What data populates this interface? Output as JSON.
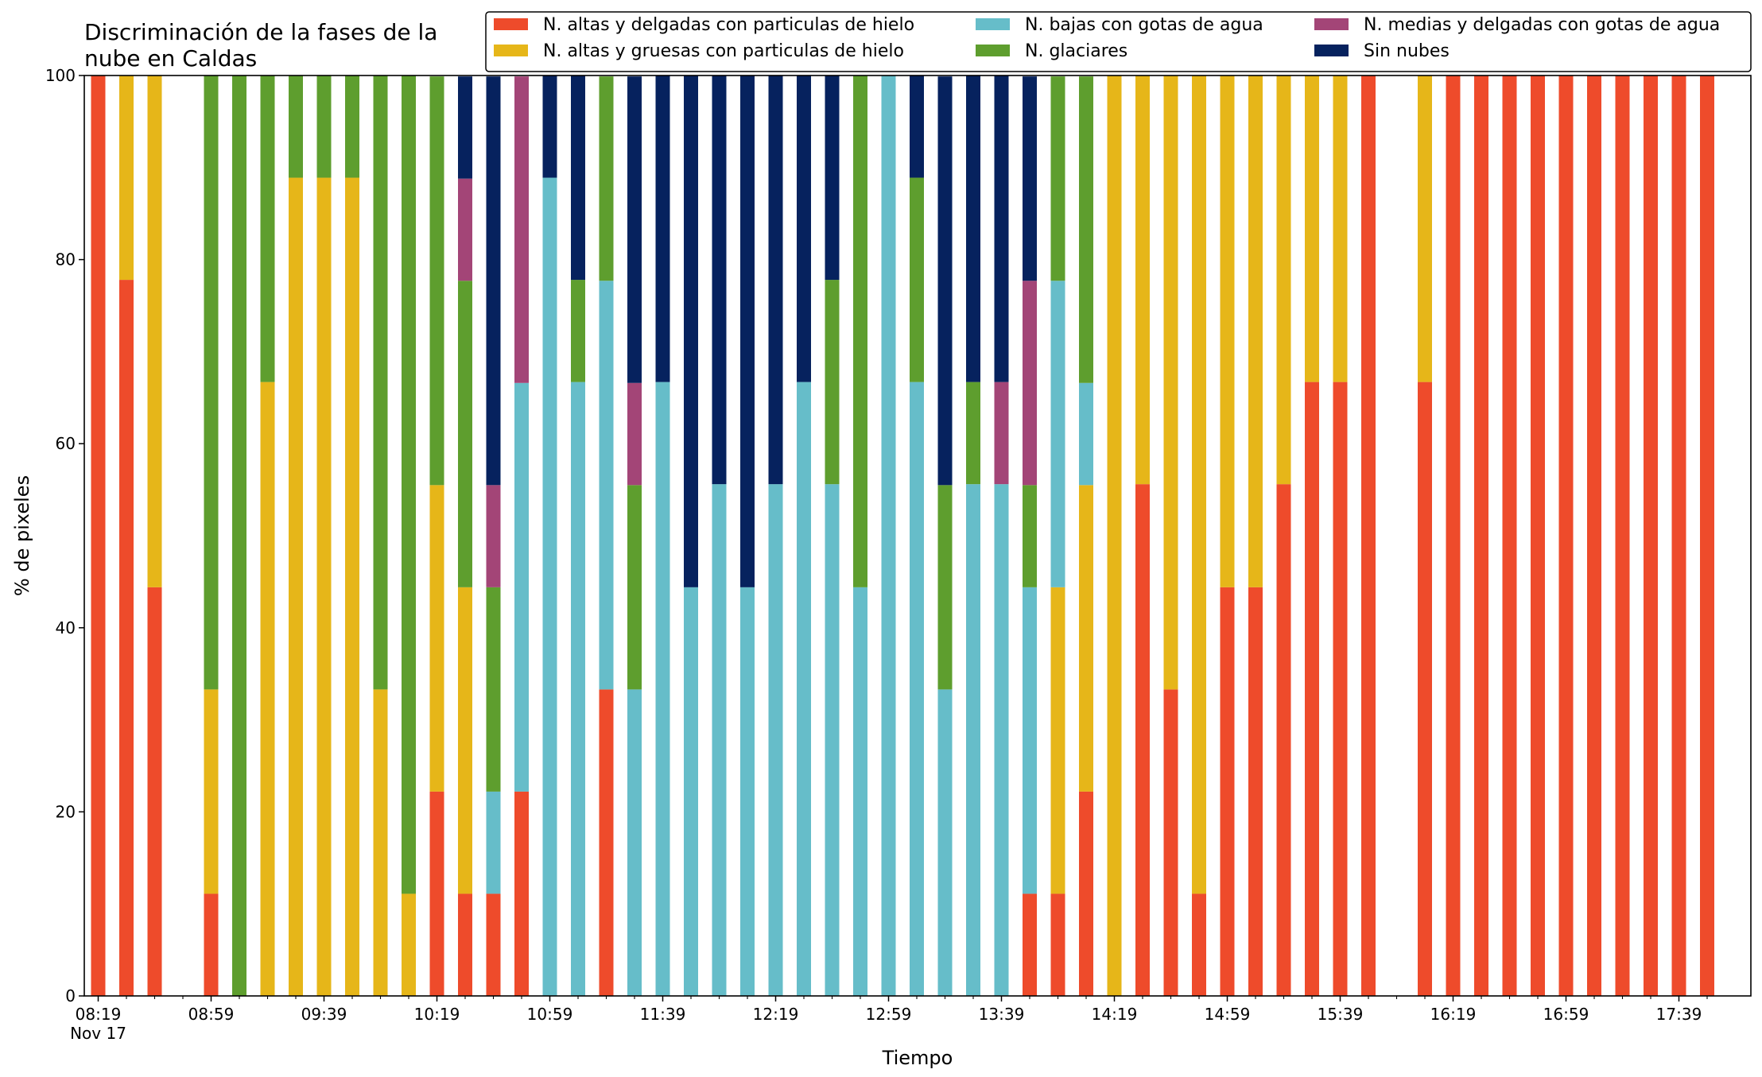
{
  "chart_data": {
    "type": "bar",
    "stacked": true,
    "title_lines": [
      "Discriminación de la fases de la",
      "nube en Caldas"
    ],
    "xlabel": "Tiempo",
    "ylabel": "% de pixeles",
    "ylim": [
      0,
      100
    ],
    "y_ticks": [
      0,
      20,
      40,
      60,
      80,
      100
    ],
    "legend_position": "top-right",
    "x_tick_labels": [
      {
        "time": "08:19",
        "sub": "Nov 17"
      },
      {
        "time": "08:59"
      },
      {
        "time": "09:39"
      },
      {
        "time": "10:19"
      },
      {
        "time": "10:59"
      },
      {
        "time": "11:39"
      },
      {
        "time": "12:19"
      },
      {
        "time": "12:59"
      },
      {
        "time": "13:39"
      },
      {
        "time": "14:19"
      },
      {
        "time": "14:59"
      },
      {
        "time": "15:39"
      },
      {
        "time": "16:19"
      },
      {
        "time": "16:59"
      },
      {
        "time": "17:39"
      }
    ],
    "categories": [
      "08:19",
      "08:29",
      "08:39",
      "08:49",
      "08:59",
      "09:09",
      "09:19",
      "09:29",
      "09:39",
      "09:49",
      "09:59",
      "10:09",
      "10:19",
      "10:29",
      "10:39",
      "10:49",
      "10:59",
      "11:09",
      "11:19",
      "11:29",
      "11:39",
      "11:49",
      "11:59",
      "12:09",
      "12:19",
      "12:29",
      "12:39",
      "12:49",
      "12:59",
      "13:09",
      "13:19",
      "13:29",
      "13:39",
      "13:49",
      "13:59",
      "14:09",
      "14:19",
      "14:29",
      "14:39",
      "14:49",
      "14:59",
      "15:09",
      "15:19",
      "15:29",
      "15:39",
      "15:49",
      "15:59",
      "16:09",
      "16:19",
      "16:29",
      "16:39",
      "16:49",
      "16:59",
      "17:09",
      "17:19",
      "17:29",
      "17:39",
      "17:49"
    ],
    "series": [
      {
        "name": "N. altas y delgadas con particulas de hielo",
        "color": "#EE4B2B",
        "values": [
          100,
          77.8,
          44.4,
          0,
          11.1,
          0,
          0,
          0,
          0,
          0,
          0,
          0,
          22.2,
          11.1,
          11.1,
          22.2,
          0,
          0,
          33.3,
          0,
          0,
          0,
          0,
          0,
          0,
          0,
          0,
          0,
          0,
          0,
          0,
          0,
          0,
          11.1,
          11.1,
          22.2,
          0,
          55.6,
          33.3,
          11.1,
          44.4,
          44.4,
          55.6,
          66.7,
          66.7,
          100,
          0,
          66.7,
          100,
          100,
          100,
          100,
          100,
          100,
          100,
          100,
          100,
          100
        ]
      },
      {
        "name": "N. altas y gruesas con particulas de hielo",
        "color": "#E6B619",
        "values": [
          0,
          22.2,
          55.6,
          0,
          22.2,
          0,
          66.7,
          88.9,
          88.9,
          88.9,
          33.3,
          11.1,
          33.3,
          33.3,
          0,
          0,
          0,
          0,
          0,
          0,
          0,
          0,
          0,
          0,
          0,
          0,
          0,
          0,
          0,
          0,
          0,
          0,
          0,
          0,
          33.3,
          33.3,
          100,
          44.4,
          66.7,
          88.9,
          55.6,
          55.6,
          44.4,
          33.3,
          33.3,
          0,
          0,
          33.3,
          0,
          0,
          0,
          0,
          0,
          0,
          0,
          0,
          0,
          0
        ]
      },
      {
        "name": "N. bajas con gotas de agua",
        "color": "#66BDC9",
        "values": [
          0,
          0,
          0,
          0,
          0,
          0,
          0,
          0,
          0,
          0,
          0,
          0,
          0,
          0,
          11.1,
          44.4,
          88.9,
          66.7,
          44.4,
          33.3,
          66.7,
          44.4,
          55.6,
          44.4,
          55.6,
          66.7,
          55.6,
          44.4,
          100,
          66.7,
          33.3,
          55.6,
          55.6,
          33.3,
          33.3,
          11.1,
          0,
          0,
          0,
          0,
          0,
          0,
          0,
          0,
          0,
          0,
          0,
          0,
          0,
          0,
          0,
          0,
          0,
          0,
          0,
          0,
          0,
          0
        ]
      },
      {
        "name": "N. glaciares",
        "color": "#5E9E2E",
        "values": [
          0,
          0,
          0,
          0,
          66.7,
          100,
          33.3,
          11.1,
          11.1,
          11.1,
          66.7,
          88.9,
          44.4,
          33.3,
          22.2,
          0,
          0,
          11.1,
          22.2,
          22.2,
          0,
          0,
          0,
          0,
          0,
          0,
          22.2,
          55.6,
          0,
          22.2,
          22.2,
          11.1,
          0,
          11.1,
          22.2,
          33.3,
          0,
          0,
          0,
          0,
          0,
          0,
          0,
          0,
          0,
          0,
          0,
          0,
          0,
          0,
          0,
          0,
          0,
          0,
          0,
          0,
          0,
          0
        ]
      },
      {
        "name": "N. medias y delgadas con gotas de agua",
        "color": "#A34577",
        "values": [
          0,
          0,
          0,
          0,
          0,
          0,
          0,
          0,
          0,
          0,
          0,
          0,
          0,
          11.1,
          11.1,
          33.3,
          0,
          0,
          0,
          11.1,
          0,
          0,
          0,
          0,
          0,
          0,
          0,
          0,
          0,
          0,
          0,
          0,
          11.1,
          22.2,
          0,
          0,
          0,
          0,
          0,
          0,
          0,
          0,
          0,
          0,
          0,
          0,
          0,
          0,
          0,
          0,
          0,
          0,
          0,
          0,
          0,
          0,
          0,
          0
        ]
      },
      {
        "name": "Sin nubes",
        "color": "#06225E",
        "values": [
          0,
          0,
          0,
          0,
          0,
          0,
          0,
          0,
          0,
          0,
          0,
          0,
          0,
          11.1,
          44.4,
          0,
          11.1,
          22.2,
          0,
          33.3,
          33.3,
          55.6,
          44.4,
          55.6,
          44.4,
          33.3,
          22.2,
          0,
          0,
          11.1,
          44.4,
          33.3,
          33.3,
          22.2,
          0,
          0,
          0,
          0,
          0,
          0,
          0,
          0,
          0,
          0,
          0,
          0,
          0,
          0,
          0,
          0,
          0,
          0,
          0,
          0,
          0,
          0,
          0,
          0
        ]
      }
    ]
  }
}
